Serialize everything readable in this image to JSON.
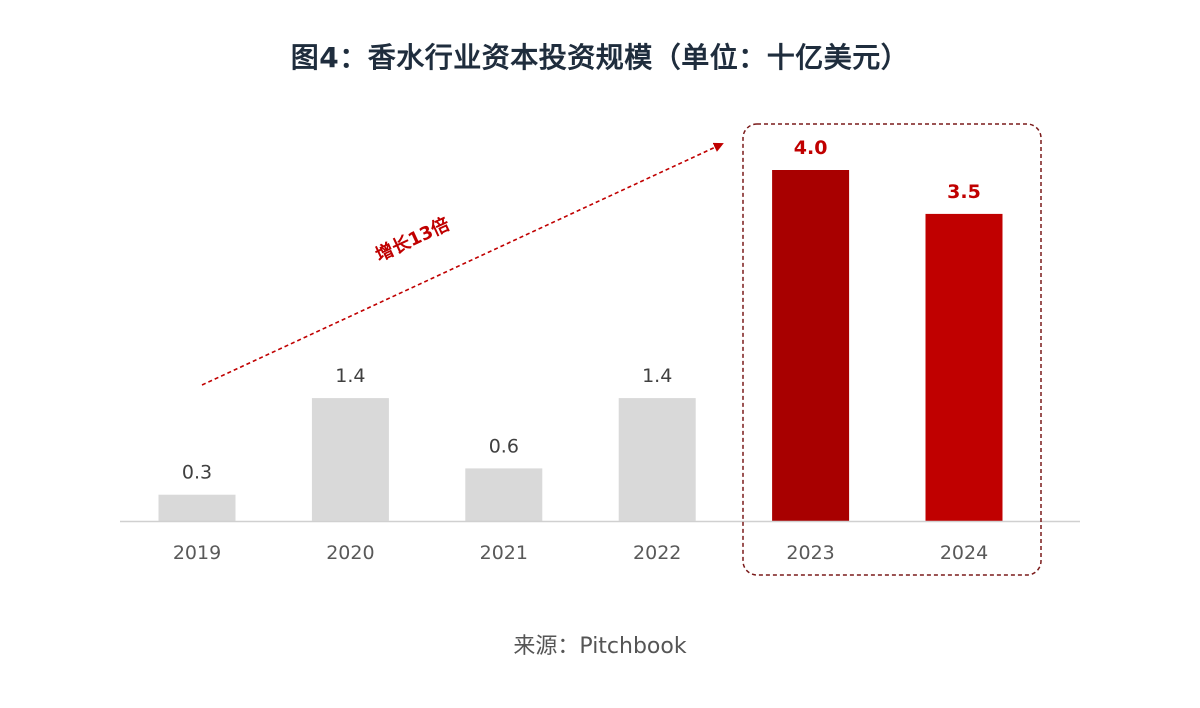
{
  "title": "图4：香水行业资本投资规模（单位：十亿美元）",
  "source": "来源：Pitchbook",
  "annotation": "增长13倍",
  "colors": {
    "gray_bar": "#d9d9d9",
    "dark_red": "#a80000",
    "red": "#c00000",
    "label_gray": "#404040",
    "axis": "#d0d0d0",
    "tick": "#595959",
    "title": "#1f2d3d"
  },
  "chart_data": {
    "type": "bar",
    "title": "图4：香水行业资本投资规模（单位：十亿美元）",
    "xlabel": "",
    "ylabel": "",
    "unit": "十亿美元",
    "categories": [
      "2019",
      "2020",
      "2021",
      "2022",
      "2023",
      "2024"
    ],
    "values": [
      0.3,
      1.4,
      0.6,
      1.4,
      4.0,
      3.5
    ],
    "labels": [
      "0.3",
      "1.4",
      "0.6",
      "1.4",
      "4.0",
      "3.5"
    ],
    "highlight": [
      false,
      false,
      false,
      false,
      true,
      true
    ],
    "ylim": [
      0,
      4.0
    ],
    "grid": false,
    "legend": "none"
  }
}
